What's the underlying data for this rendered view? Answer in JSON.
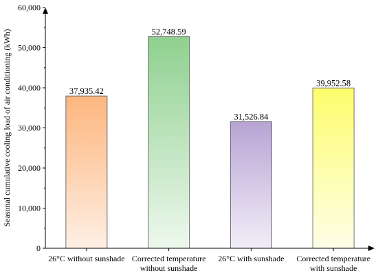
{
  "chart_data": {
    "type": "bar",
    "categories": [
      [
        "26°C without sunshade"
      ],
      [
        "Corrected temperature",
        "without sunshade"
      ],
      [
        "26°C with sunshade"
      ],
      [
        "Corrected temperature",
        "with sunshade"
      ]
    ],
    "values": [
      37935.42,
      52748.59,
      31526.84,
      39952.58
    ],
    "value_labels": [
      "37,935.42",
      "52,748.59",
      "31,526.84",
      "39,952.58"
    ],
    "ylabel": "Seasonal cumulative cooling load of air conditioning (kWh)",
    "ylim": [
      0,
      60000
    ],
    "yticks": [
      0,
      10000,
      20000,
      30000,
      40000,
      50000,
      60000
    ],
    "ytick_labels": [
      "0",
      "10,000",
      "20,000",
      "30,000",
      "40,000",
      "50,000",
      "60,000"
    ],
    "grid": false,
    "legend": "none",
    "bar_colors": [
      {
        "top": "#fdb67e",
        "bottom": "#feefe4",
        "stroke": "#6e6e6e"
      },
      {
        "top": "#8fd08f",
        "bottom": "#eef8ee",
        "stroke": "#6e6e6e"
      },
      {
        "top": "#b8a4d4",
        "bottom": "#f2eef8",
        "stroke": "#6e6e6e"
      },
      {
        "top": "#fdfd6c",
        "bottom": "#fefee8",
        "stroke": "#6e6e6e"
      }
    ]
  }
}
